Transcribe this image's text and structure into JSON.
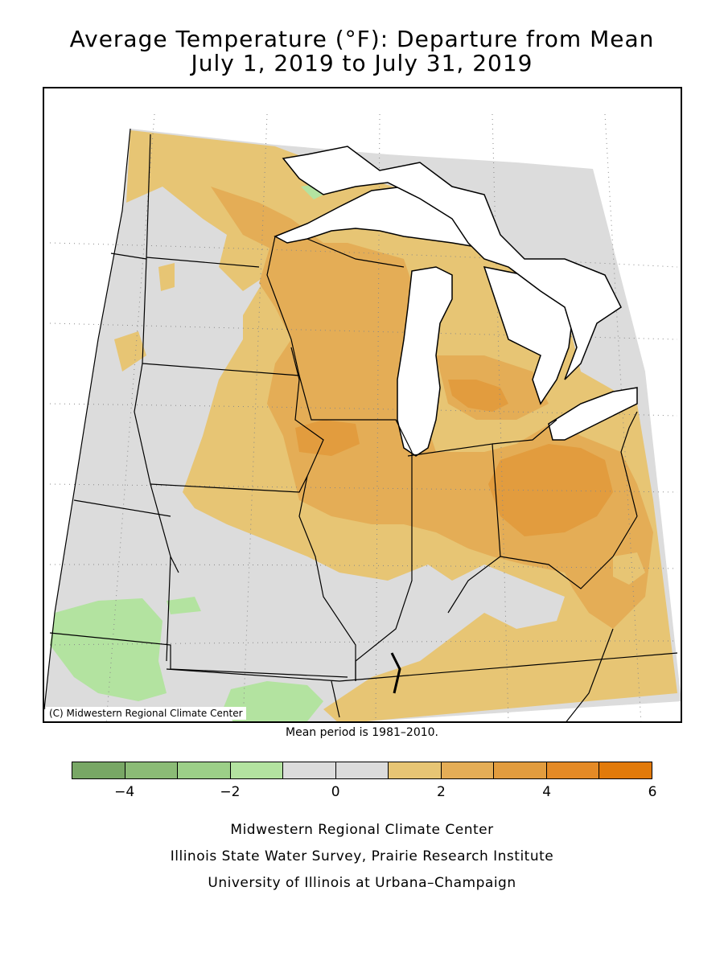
{
  "title": {
    "line1": "Average Temperature (°F): Departure from Mean",
    "line2": "July 1, 2019 to July 31, 2019"
  },
  "map": {
    "copyright": "(C) Midwestern Regional Climate Center",
    "region": "Midwest US",
    "colors": {
      "neutral": "#dcdcdc",
      "warm_1": "#e7c574",
      "warm_2": "#e4ad56",
      "warm_3": "#e29c3e",
      "cool_1": "#b3e3a0",
      "cool_2": "#9ccf88",
      "lake": "#ffffff"
    }
  },
  "mean_period": "Mean period is 1981–2010.",
  "legend": {
    "bins": [
      {
        "from": -5,
        "to": -4,
        "color": "#78a765"
      },
      {
        "from": -4,
        "to": -3,
        "color": "#8bbb76"
      },
      {
        "from": -3,
        "to": -2,
        "color": "#9ccf88"
      },
      {
        "from": -2,
        "to": -1,
        "color": "#b3e3a0"
      },
      {
        "from": -1,
        "to": 0,
        "color": "#dcdcdc"
      },
      {
        "from": 0,
        "to": 1,
        "color": "#dcdcdc"
      },
      {
        "from": 1,
        "to": 2,
        "color": "#e7c574"
      },
      {
        "from": 2,
        "to": 3,
        "color": "#e4ad56"
      },
      {
        "from": 3,
        "to": 4,
        "color": "#e29c3e"
      },
      {
        "from": 4,
        "to": 5,
        "color": "#e48a26"
      },
      {
        "from": 5,
        "to": 6,
        "color": "#e27a0a"
      }
    ],
    "tick_labels": [
      "−4",
      "−2",
      "0",
      "2",
      "4",
      "6"
    ]
  },
  "credits": {
    "line1": "Midwestern Regional Climate Center",
    "line2": "Illinois State Water Survey, Prairie Research Institute",
    "line3": "University of Illinois at Urbana–Champaign"
  }
}
